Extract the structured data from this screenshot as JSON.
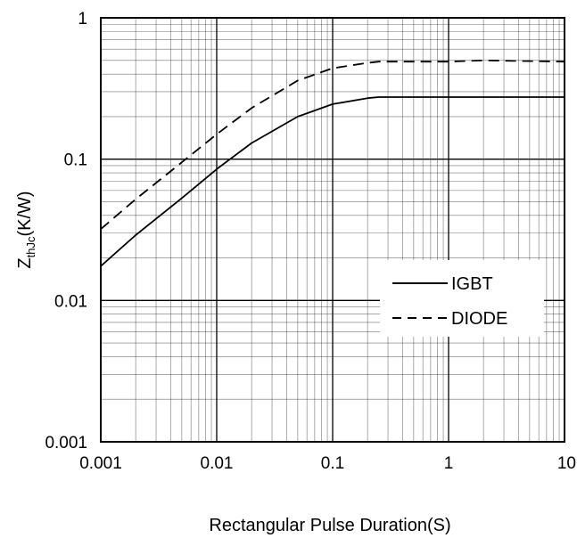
{
  "chart_data": {
    "type": "line",
    "xscale": "log",
    "yscale": "log",
    "xlim": [
      0.001,
      10
    ],
    "ylim": [
      0.001,
      1
    ],
    "xlabel": "Rectangular Pulse Duration(S)",
    "ylabel": {
      "main": "Z",
      "sub": "thJc",
      "suffix": "(K/W)"
    },
    "x_ticks": [
      {
        "value": 0.001,
        "label": "0.001"
      },
      {
        "value": 0.01,
        "label": "0.01"
      },
      {
        "value": 0.1,
        "label": "0.1"
      },
      {
        "value": 1,
        "label": "1"
      },
      {
        "value": 10,
        "label": "10"
      }
    ],
    "y_ticks": [
      {
        "value": 0.001,
        "label": "0.001"
      },
      {
        "value": 0.01,
        "label": "0.01"
      },
      {
        "value": 0.1,
        "label": "0.1"
      },
      {
        "value": 1,
        "label": "1"
      }
    ],
    "grid": true,
    "legend_position": "right",
    "series": [
      {
        "name": "IGBT",
        "style": "solid",
        "points": [
          [
            0.001,
            0.0175
          ],
          [
            0.002,
            0.029
          ],
          [
            0.005,
            0.053
          ],
          [
            0.01,
            0.085
          ],
          [
            0.02,
            0.13
          ],
          [
            0.05,
            0.2
          ],
          [
            0.1,
            0.245
          ],
          [
            0.2,
            0.27
          ],
          [
            0.25,
            0.275
          ],
          [
            0.5,
            0.275
          ],
          [
            1,
            0.275
          ],
          [
            10,
            0.275
          ]
        ]
      },
      {
        "name": "DIODE",
        "style": "dashed",
        "points": [
          [
            0.001,
            0.032
          ],
          [
            0.002,
            0.052
          ],
          [
            0.005,
            0.095
          ],
          [
            0.01,
            0.15
          ],
          [
            0.02,
            0.23
          ],
          [
            0.05,
            0.36
          ],
          [
            0.1,
            0.44
          ],
          [
            0.2,
            0.48
          ],
          [
            0.25,
            0.49
          ],
          [
            0.5,
            0.49
          ],
          [
            1,
            0.49
          ],
          [
            2,
            0.5
          ],
          [
            10,
            0.49
          ]
        ]
      }
    ]
  },
  "colors": {
    "line": "#000000",
    "grid": "#000000",
    "background": "#ffffff"
  }
}
